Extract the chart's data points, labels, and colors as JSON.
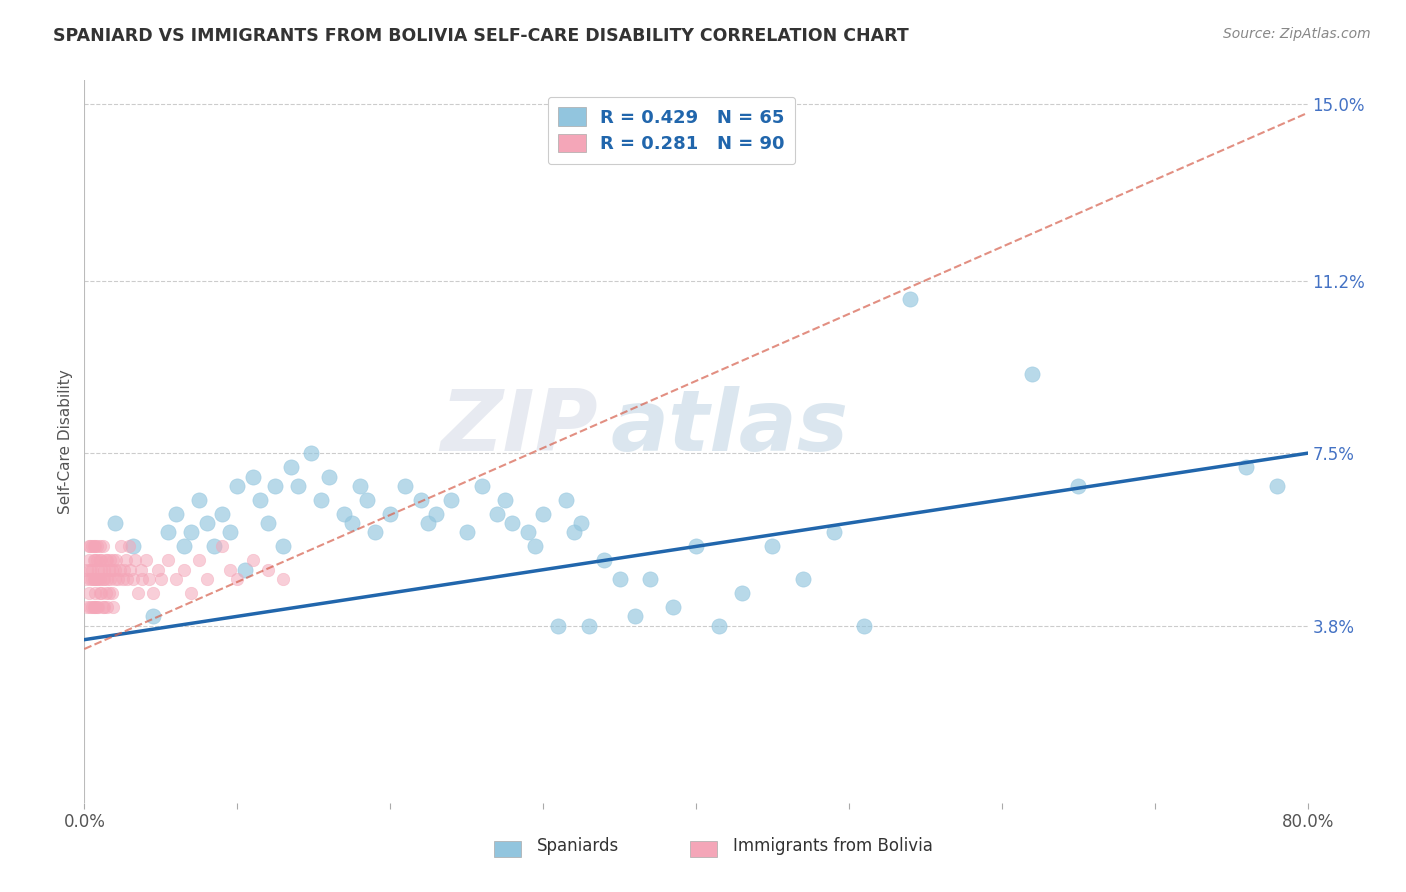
{
  "title": "SPANIARD VS IMMIGRANTS FROM BOLIVIA SELF-CARE DISABILITY CORRELATION CHART",
  "source": "Source: ZipAtlas.com",
  "ylabel": "Self-Care Disability",
  "xlim": [
    0.0,
    0.8
  ],
  "ylim": [
    0.0,
    0.155
  ],
  "ytick_positions": [
    0.038,
    0.075,
    0.112,
    0.15
  ],
  "ytick_labels": [
    "3.8%",
    "7.5%",
    "11.2%",
    "15.0%"
  ],
  "legend_r1": "R = 0.429",
  "legend_n1": "N = 65",
  "legend_r2": "R = 0.281",
  "legend_n2": "N = 90",
  "color_spaniard": "#92c5de",
  "color_bolivia": "#f4a6b8",
  "color_line_spaniard": "#2166ac",
  "color_line_bolivia": "#d6604d",
  "watermark_zip": "ZIP",
  "watermark_atlas": "atlas",
  "background_color": "#ffffff",
  "spaniard_circle_size": 120,
  "bolivia_circle_size": 80,
  "spaniards_x": [
    0.02,
    0.032,
    0.045,
    0.055,
    0.06,
    0.065,
    0.07,
    0.075,
    0.08,
    0.085,
    0.09,
    0.095,
    0.1,
    0.105,
    0.11,
    0.115,
    0.12,
    0.125,
    0.13,
    0.135,
    0.14,
    0.148,
    0.155,
    0.16,
    0.17,
    0.175,
    0.18,
    0.185,
    0.19,
    0.2,
    0.21,
    0.22,
    0.225,
    0.23,
    0.24,
    0.25,
    0.26,
    0.27,
    0.275,
    0.28,
    0.29,
    0.295,
    0.3,
    0.31,
    0.315,
    0.32,
    0.325,
    0.33,
    0.34,
    0.35,
    0.36,
    0.37,
    0.385,
    0.4,
    0.415,
    0.43,
    0.45,
    0.47,
    0.49,
    0.51,
    0.54,
    0.62,
    0.65,
    0.76,
    0.78
  ],
  "spaniards_y": [
    0.06,
    0.055,
    0.04,
    0.058,
    0.062,
    0.055,
    0.058,
    0.065,
    0.06,
    0.055,
    0.062,
    0.058,
    0.068,
    0.05,
    0.07,
    0.065,
    0.06,
    0.068,
    0.055,
    0.072,
    0.068,
    0.075,
    0.065,
    0.07,
    0.062,
    0.06,
    0.068,
    0.065,
    0.058,
    0.062,
    0.068,
    0.065,
    0.06,
    0.062,
    0.065,
    0.058,
    0.068,
    0.062,
    0.065,
    0.06,
    0.058,
    0.055,
    0.062,
    0.038,
    0.065,
    0.058,
    0.06,
    0.038,
    0.052,
    0.048,
    0.04,
    0.048,
    0.042,
    0.055,
    0.038,
    0.045,
    0.055,
    0.048,
    0.058,
    0.038,
    0.108,
    0.092,
    0.068,
    0.072,
    0.068
  ],
  "bolivia_x": [
    0.001,
    0.002,
    0.002,
    0.003,
    0.003,
    0.003,
    0.004,
    0.004,
    0.004,
    0.004,
    0.005,
    0.005,
    0.005,
    0.005,
    0.006,
    0.006,
    0.006,
    0.006,
    0.007,
    0.007,
    0.007,
    0.007,
    0.007,
    0.008,
    0.008,
    0.008,
    0.008,
    0.009,
    0.009,
    0.009,
    0.01,
    0.01,
    0.01,
    0.01,
    0.011,
    0.011,
    0.011,
    0.012,
    0.012,
    0.012,
    0.013,
    0.013,
    0.013,
    0.014,
    0.014,
    0.015,
    0.015,
    0.015,
    0.016,
    0.016,
    0.017,
    0.017,
    0.018,
    0.018,
    0.019,
    0.019,
    0.02,
    0.02,
    0.021,
    0.022,
    0.023,
    0.024,
    0.025,
    0.026,
    0.027,
    0.028,
    0.029,
    0.03,
    0.032,
    0.033,
    0.035,
    0.037,
    0.038,
    0.04,
    0.042,
    0.045,
    0.048,
    0.05,
    0.055,
    0.06,
    0.065,
    0.07,
    0.075,
    0.08,
    0.09,
    0.095,
    0.1,
    0.11,
    0.12,
    0.13
  ],
  "bolivia_y": [
    0.048,
    0.05,
    0.042,
    0.052,
    0.045,
    0.055,
    0.048,
    0.055,
    0.042,
    0.05,
    0.05,
    0.048,
    0.055,
    0.042,
    0.052,
    0.048,
    0.055,
    0.042,
    0.052,
    0.048,
    0.042,
    0.055,
    0.045,
    0.052,
    0.048,
    0.042,
    0.055,
    0.05,
    0.048,
    0.042,
    0.052,
    0.045,
    0.048,
    0.055,
    0.05,
    0.045,
    0.052,
    0.048,
    0.042,
    0.055,
    0.05,
    0.048,
    0.042,
    0.052,
    0.045,
    0.052,
    0.048,
    0.042,
    0.05,
    0.045,
    0.052,
    0.048,
    0.05,
    0.045,
    0.052,
    0.042,
    0.05,
    0.048,
    0.052,
    0.048,
    0.05,
    0.055,
    0.048,
    0.05,
    0.052,
    0.048,
    0.055,
    0.05,
    0.048,
    0.052,
    0.045,
    0.05,
    0.048,
    0.052,
    0.048,
    0.045,
    0.05,
    0.048,
    0.052,
    0.048,
    0.05,
    0.045,
    0.052,
    0.048,
    0.055,
    0.05,
    0.048,
    0.052,
    0.05,
    0.048
  ],
  "span_line_x": [
    0.0,
    0.8
  ],
  "span_line_y": [
    0.035,
    0.075
  ],
  "bol_line_x": [
    0.0,
    0.8
  ],
  "bol_line_y": [
    0.033,
    0.148
  ]
}
